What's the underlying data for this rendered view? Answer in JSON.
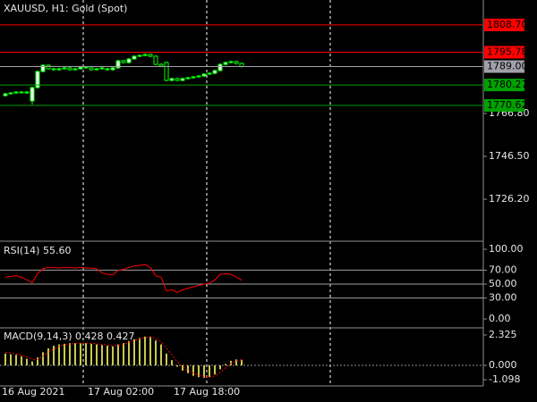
{
  "chart_data": [
    {
      "type": "candlestick",
      "title": "XAUUSD, H1:  Gold (Spot)",
      "categories": [
        "16 Aug 2021",
        null,
        null,
        null,
        null,
        null,
        null,
        null,
        null,
        null,
        null,
        null,
        null,
        null,
        null,
        null,
        "17 Aug 02:00",
        null,
        null,
        null,
        null,
        null,
        null,
        null,
        null,
        null,
        null,
        null,
        null,
        null,
        null,
        null,
        "17 Aug 18:00",
        null,
        null,
        null,
        null,
        null,
        null,
        null,
        null,
        null,
        null,
        null,
        null
      ],
      "open": [
        1775.26,
        1776.1,
        1776.53,
        1776.95,
        1776.95,
        1772.72,
        1779.06,
        1786.68,
        1789.64,
        1787.95,
        1787.52,
        1787.95,
        1788.37,
        1787.52,
        1787.95,
        1788.79,
        1788.37,
        1787.52,
        1787.95,
        1787.95,
        1787.52,
        1788.37,
        1791.75,
        1790.91,
        1792.6,
        1793.87,
        1794.29,
        1794.71,
        1793.87,
        1790.06,
        1790.91,
        1782.45,
        1783.29,
        1782.45,
        1783.29,
        1783.72,
        1784.14,
        1784.56,
        1785.41,
        1785.83,
        1787.1,
        1790.06,
        1790.91,
        1791.33,
        1790.48
      ],
      "high": [
        1776.6,
        1777.03,
        1777.45,
        1777.45,
        1777.45,
        1779.56,
        1787.18,
        1790.14,
        1790.14,
        1788.45,
        1788.45,
        1788.87,
        1788.87,
        1788.45,
        1789.29,
        1789.29,
        1788.87,
        1788.45,
        1788.87,
        1788.45,
        1788.87,
        1792.25,
        1792.25,
        1793.1,
        1794.37,
        1794.79,
        1795.21,
        1795.21,
        1794.37,
        1790.56,
        1791.41,
        1783.79,
        1783.79,
        1783.79,
        1784.22,
        1784.64,
        1785.06,
        1785.91,
        1786.33,
        1787.6,
        1790.56,
        1791.41,
        1791.83,
        1791.83,
        1790.98
      ],
      "low": [
        1774.76,
        1775.6,
        1776.03,
        1776.45,
        1776.03,
        1771.0,
        1778.56,
        1786.18,
        1787.45,
        1787.02,
        1787.02,
        1787.45,
        1787.02,
        1787.02,
        1787.45,
        1787.87,
        1787.02,
        1787.02,
        1787.45,
        1787.02,
        1787.02,
        1787.87,
        1790.41,
        1790.41,
        1792.1,
        1793.37,
        1793.79,
        1793.37,
        1789.56,
        1788.71,
        1781.95,
        1781.95,
        1781.95,
        1781.95,
        1782.79,
        1783.22,
        1783.64,
        1784.06,
        1784.91,
        1785.33,
        1786.6,
        1789.56,
        1790.41,
        1789.98,
        1788.5
      ],
      "close": [
        1776.1,
        1776.53,
        1776.95,
        1776.95,
        1776.53,
        1779.06,
        1786.68,
        1789.64,
        1787.95,
        1787.52,
        1787.95,
        1788.37,
        1787.52,
        1787.95,
        1788.79,
        1788.37,
        1787.52,
        1787.95,
        1788.37,
        1787.52,
        1788.37,
        1791.75,
        1790.91,
        1792.6,
        1793.87,
        1794.29,
        1794.71,
        1793.87,
        1790.06,
        1789.21,
        1782.45,
        1783.29,
        1782.45,
        1783.29,
        1783.72,
        1784.14,
        1784.56,
        1785.41,
        1785.83,
        1787.1,
        1790.06,
        1790.91,
        1791.33,
        1790.48,
        1789.0
      ],
      "up_color": "#ffffff",
      "down_color": "#000000",
      "wick_color": "#00ff00",
      "ylim": [
        1707.2,
        1820.5
      ],
      "yticks": [
        {
          "value": 1766.8,
          "label": "1766.80"
        },
        {
          "value": 1746.5,
          "label": "1746.50"
        },
        {
          "value": 1726.2,
          "label": "1726.20"
        }
      ],
      "levels": [
        {
          "value": 1808.7,
          "label": "1808.70",
          "color": "#ff0000"
        },
        {
          "value": 1795.78,
          "label": "1795.78",
          "color": "#ff0000"
        },
        {
          "value": 1789,
          "label": "1789.00",
          "color": "#a0a0a8"
        },
        {
          "value": 1780.27,
          "label": "1780.27",
          "color": "#00a000"
        },
        {
          "value": 1770.62,
          "label": "1770.62",
          "color": "#00a000"
        }
      ]
    },
    {
      "type": "line",
      "title": "RSI(14) 55.60",
      "color": "#ff0000",
      "values": [
        60,
        61,
        62,
        60,
        56,
        52,
        65,
        72,
        74,
        74,
        73,
        74,
        74,
        73,
        74,
        73,
        73,
        72,
        66,
        64,
        63,
        70,
        71,
        74,
        76,
        77,
        78,
        74,
        62,
        60,
        40,
        42,
        38,
        42,
        44,
        46,
        48,
        50,
        51,
        56,
        64,
        65,
        64,
        60,
        55.6
      ],
      "ylim": [
        -11.5,
        110.3
      ],
      "yticks": [
        {
          "value": 100,
          "label": "100.00"
        },
        {
          "value": 70,
          "label": "70.00"
        },
        {
          "value": 50,
          "label": "50.00"
        },
        {
          "value": 30,
          "label": "30.00"
        },
        {
          "value": 0,
          "label": "0.00"
        }
      ],
      "levels": [
        70,
        50,
        30
      ]
    },
    {
      "type": "bar",
      "title": "MACD(9,14,3) 0.428 0.427",
      "color": "#c8c850",
      "values": [
        0.9,
        0.85,
        0.8,
        0.7,
        0.5,
        0.3,
        0.6,
        1.0,
        1.3,
        1.5,
        1.6,
        1.65,
        1.7,
        1.7,
        1.7,
        1.7,
        1.65,
        1.6,
        1.55,
        1.5,
        1.45,
        1.6,
        1.7,
        1.85,
        2.0,
        2.1,
        2.2,
        2.2,
        1.9,
        1.6,
        0.9,
        0.4,
        -0.1,
        -0.4,
        -0.6,
        -0.8,
        -0.9,
        -0.95,
        -0.9,
        -0.7,
        -0.3,
        0.1,
        0.35,
        0.45,
        0.428
      ],
      "signal": {
        "color": "#ff0000",
        "values": [
          1.0,
          0.95,
          0.88,
          0.8,
          0.65,
          0.45,
          0.45,
          0.7,
          1.0,
          1.25,
          1.45,
          1.55,
          1.62,
          1.67,
          1.69,
          1.7,
          1.68,
          1.64,
          1.6,
          1.55,
          1.5,
          1.52,
          1.62,
          1.75,
          1.9,
          2.02,
          2.12,
          2.18,
          2.05,
          1.8,
          1.3,
          0.8,
          0.3,
          -0.1,
          -0.4,
          -0.6,
          -0.75,
          -0.85,
          -0.9,
          -0.82,
          -0.55,
          -0.2,
          0.15,
          0.35,
          0.427
        ]
      },
      "ylim": [
        -1.573,
        2.8
      ],
      "yticks": [
        2.325,
        {
          "value": 0,
          "label": "0.000"
        },
        -1.098
      ]
    }
  ]
}
